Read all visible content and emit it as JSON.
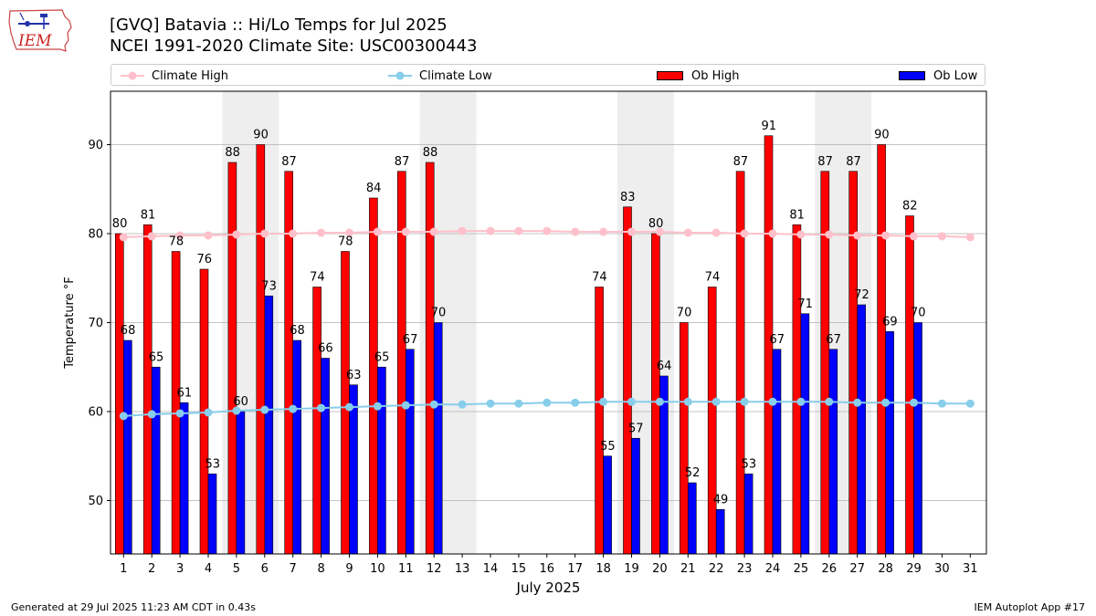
{
  "header": {
    "title_line1": "[GVQ] Batavia :: Hi/Lo Temps for Jul 2025",
    "title_line2": "NCEI 1991-2020 Climate Site: USC00300443"
  },
  "logo": {
    "text": "IEM",
    "icon": "iem-iowa-map-logo"
  },
  "footer": {
    "left": "Generated at 29 Jul 2025 11:23 AM CDT in 0.43s",
    "right": "IEM Autoplot App #17"
  },
  "colors": {
    "ob_high": "#ff0000",
    "ob_low": "#0000ff",
    "climate_high": "#ffc0cb",
    "climate_low": "#87ceeb",
    "weekend_shade": "#eeeeee",
    "grid": "#b0b0b0"
  },
  "chart_data": {
    "type": "bar",
    "xlabel": "July 2025",
    "ylabel": "Temperature °F",
    "ylim": [
      44,
      96
    ],
    "yticks": [
      50,
      60,
      70,
      80,
      90
    ],
    "grid": "horizontal",
    "legend_position": "top",
    "categories": [
      "1",
      "2",
      "3",
      "4",
      "5",
      "6",
      "7",
      "8",
      "9",
      "10",
      "11",
      "12",
      "13",
      "14",
      "15",
      "16",
      "17",
      "18",
      "19",
      "20",
      "21",
      "22",
      "23",
      "24",
      "25",
      "26",
      "27",
      "28",
      "29",
      "30",
      "31"
    ],
    "shaded_days": [
      [
        5,
        6
      ],
      [
        12,
        13
      ],
      [
        19,
        20
      ],
      [
        26,
        27
      ]
    ],
    "series": [
      {
        "name": "Climate High",
        "kind": "line",
        "values": [
          79.6,
          79.7,
          79.8,
          79.8,
          79.9,
          80.0,
          80.0,
          80.1,
          80.1,
          80.2,
          80.2,
          80.2,
          80.3,
          80.3,
          80.3,
          80.3,
          80.2,
          80.2,
          80.2,
          80.2,
          80.1,
          80.1,
          80.0,
          80.0,
          79.9,
          79.9,
          79.8,
          79.8,
          79.7,
          79.7,
          79.6
        ]
      },
      {
        "name": "Climate Low",
        "kind": "line",
        "values": [
          59.5,
          59.7,
          59.8,
          59.9,
          60.1,
          60.2,
          60.3,
          60.4,
          60.5,
          60.6,
          60.7,
          60.8,
          60.8,
          60.9,
          60.9,
          61.0,
          61.0,
          61.1,
          61.1,
          61.1,
          61.1,
          61.1,
          61.1,
          61.1,
          61.1,
          61.1,
          61.0,
          61.0,
          61.0,
          60.9,
          60.9
        ]
      },
      {
        "name": "Ob High",
        "kind": "bar",
        "values": [
          80,
          81,
          78,
          76,
          88,
          90,
          87,
          74,
          78,
          84,
          87,
          88,
          null,
          null,
          null,
          null,
          null,
          74,
          83,
          80,
          70,
          74,
          87,
          91,
          81,
          87,
          87,
          90,
          82,
          null,
          null
        ],
        "labels": [
          "80",
          "81",
          "78",
          "76",
          "88",
          "90",
          "87",
          "74",
          "78",
          "84",
          "87",
          "88",
          null,
          null,
          null,
          null,
          null,
          "74",
          "83",
          "80",
          "70",
          "74",
          "87",
          "91",
          "81",
          "87",
          "87",
          "90",
          "82",
          null,
          null
        ]
      },
      {
        "name": "Ob Low",
        "kind": "bar",
        "values": [
          68,
          65,
          61,
          53,
          60,
          73,
          68,
          66,
          63,
          65,
          67,
          70,
          null,
          null,
          null,
          null,
          null,
          55,
          57,
          64,
          52,
          49,
          53,
          67,
          71,
          67,
          72,
          69,
          70,
          null,
          null
        ],
        "labels": [
          "68",
          "65",
          "61",
          "53",
          "60",
          "73",
          "68",
          "66",
          "63",
          "65",
          "67",
          "70",
          null,
          null,
          null,
          null,
          null,
          "55",
          "57",
          "64",
          "52",
          "49",
          "53",
          "67",
          "71",
          "67",
          "72",
          "69",
          "70",
          null,
          null
        ]
      }
    ]
  }
}
